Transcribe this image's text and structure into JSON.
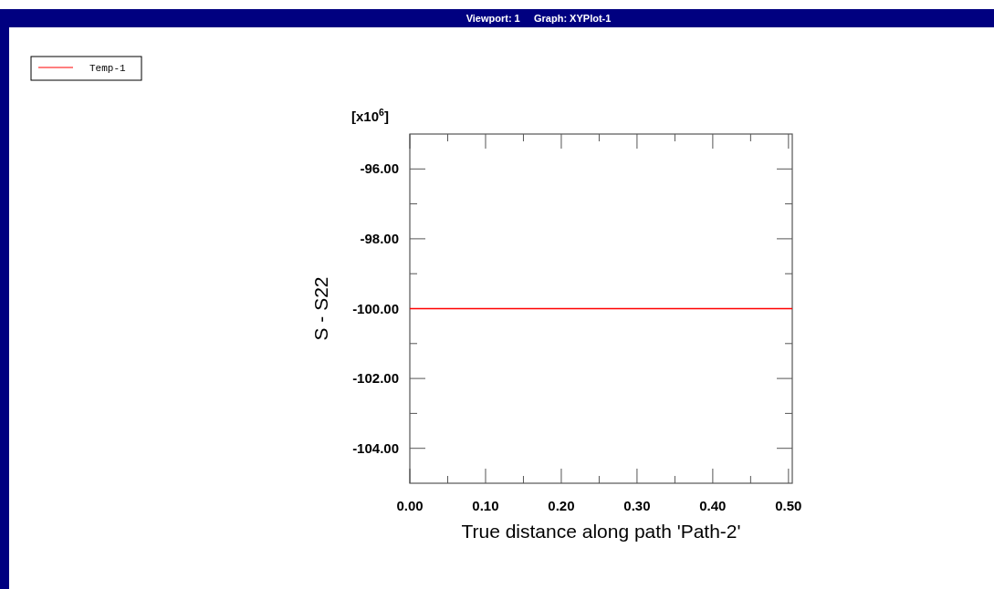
{
  "chart_data": {
    "type": "line",
    "title": "Viewport: 1     Graph: XYPlot-1",
    "xlabel": "True distance along path 'Path-2'",
    "ylabel": "S - S22",
    "annotations": [
      "[x10$^{6}$]"
    ],
    "x": [
      0,
      0.505
    ],
    "series": [
      {
        "name": "Temp-1",
        "color": "#ff0000",
        "values": [
          -100,
          -100
        ]
      }
    ],
    "xlim": [
      0,
      0.505
    ],
    "ylim": [
      -105,
      -95
    ],
    "xticks": [
      {
        "value": 0,
        "label": "0.00"
      },
      {
        "value": 0.05,
        "label": null
      },
      {
        "value": 0.1,
        "label": "0.10"
      },
      {
        "value": 0.15,
        "label": null
      },
      {
        "value": 0.2,
        "label": "0.20"
      },
      {
        "value": 0.25,
        "label": null
      },
      {
        "value": 0.3,
        "label": "0.30"
      },
      {
        "value": 0.35,
        "label": null
      },
      {
        "value": 0.4,
        "label": "0.40"
      },
      {
        "value": 0.45,
        "label": null
      },
      {
        "value": 0.5,
        "label": "0.50"
      }
    ],
    "yticks": [
      {
        "value": -104,
        "label": "-104.00"
      },
      {
        "value": -103,
        "label": null
      },
      {
        "value": -102,
        "label": "-102.00"
      },
      {
        "value": -101,
        "label": null
      },
      {
        "value": -100,
        "label": "-100.00"
      },
      {
        "value": -99,
        "label": null
      },
      {
        "value": -98,
        "label": "-98.00"
      },
      {
        "value": -97,
        "label": null
      },
      {
        "value": -96,
        "label": "-96.00"
      }
    ],
    "grid": false,
    "legend": "top left",
    "marker": "none",
    "line_style": "solid"
  }
}
